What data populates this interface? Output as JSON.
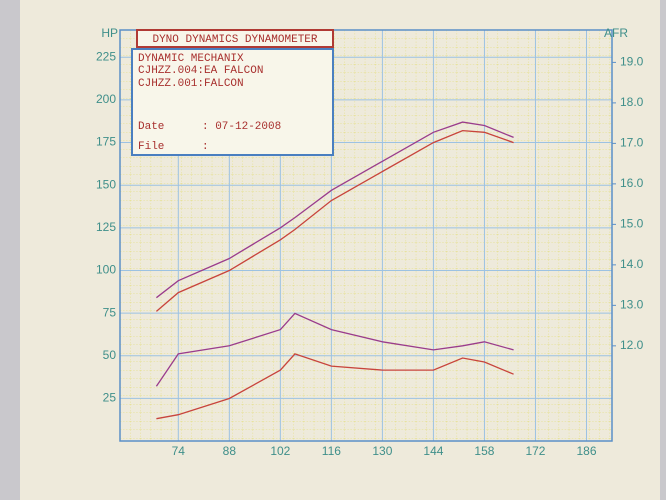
{
  "chart_data": {
    "type": "line",
    "title": "DYNO DYNAMICS DYNAMOMETER",
    "shop": "DYNAMIC MECHANIX",
    "date_label": "Date",
    "date": ": 07-12-2008",
    "file_label": "File",
    "file": ":",
    "ylabel": "HP",
    "y2label": "AFR",
    "x": [
      68,
      74,
      88,
      102,
      106,
      116,
      130,
      144,
      152,
      158,
      166
    ],
    "series": [
      {
        "name": "CJHZZ.004:EA FALCON",
        "color": "#9a3c8c",
        "values": [
          84,
          94,
          107,
          125,
          131,
          147,
          164,
          181,
          187,
          185,
          178
        ]
      },
      {
        "name": "CJHZZ.001:FALCON",
        "color": "#c8443c",
        "values": [
          76,
          87,
          100,
          118,
          124,
          141,
          158,
          175,
          182,
          181,
          175
        ]
      },
      {
        "color": "#9a3c8c",
        "axis": "y2",
        "values": [
          11.0,
          11.8,
          12.0,
          12.4,
          12.8,
          12.4,
          12.1,
          11.9,
          12.0,
          12.1,
          11.9
        ]
      },
      {
        "color": "#c8443c",
        "axis": "y2",
        "values": [
          10.2,
          10.3,
          10.7,
          11.4,
          11.8,
          11.5,
          11.4,
          11.4,
          11.7,
          11.6,
          11.3
        ]
      }
    ],
    "xlim": [
      58,
      193
    ],
    "xticks": [
      74,
      88,
      102,
      116,
      130,
      144,
      158,
      172,
      186
    ],
    "ylim": [
      0,
      241
    ],
    "yticks": [
      25,
      50,
      75,
      100,
      125,
      150,
      175,
      200,
      225
    ],
    "y2lim": [
      9.65,
      19.8
    ],
    "y2ticks": [
      {
        "value": 12,
        "label": "12.0"
      },
      {
        "value": 13,
        "label": "13.0"
      },
      {
        "value": 14,
        "label": "14.0"
      },
      {
        "value": 15,
        "label": "15.0"
      },
      {
        "value": 16,
        "label": "16.0"
      },
      {
        "value": 17,
        "label": "17.0"
      },
      {
        "value": 18,
        "label": "18.0"
      },
      {
        "value": 19,
        "label": "19.0"
      }
    ],
    "grid": true
  }
}
